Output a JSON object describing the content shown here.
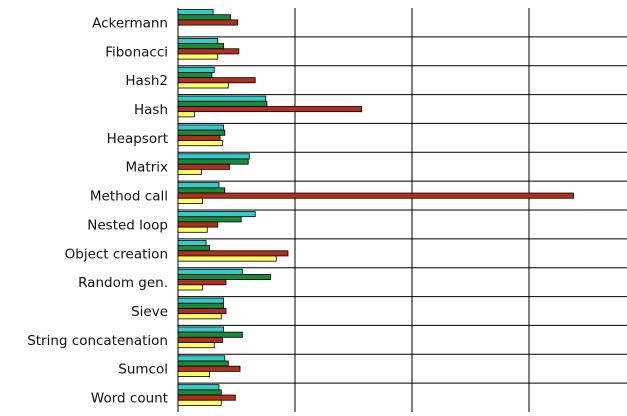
{
  "chart_data": {
    "type": "bar",
    "orientation": "horizontal",
    "categories": [
      "Ackermann",
      "Fibonacci",
      "Hash2",
      "Hash",
      "Heapsort",
      "Matrix",
      "Method call",
      "Nested loop",
      "Object creation",
      "Random gen.",
      "Sieve",
      "String concatenation",
      "Sumcol",
      "Word count"
    ],
    "series": [
      {
        "color": "#33cccc",
        "values": [
          0.3,
          0.34,
          0.31,
          0.75,
          0.39,
          0.61,
          0.35,
          0.66,
          0.24,
          0.55,
          0.39,
          0.39,
          0.4,
          0.35
        ]
      },
      {
        "color": "#1a8a3a",
        "values": [
          0.45,
          0.39,
          0.29,
          0.76,
          0.4,
          0.6,
          0.4,
          0.54,
          0.27,
          0.79,
          0.39,
          0.55,
          0.43,
          0.37
        ]
      },
      {
        "color": "#b03020",
        "values": [
          0.51,
          0.52,
          0.66,
          1.57,
          0.36,
          0.44,
          3.38,
          0.34,
          0.94,
          0.41,
          0.41,
          0.38,
          0.53,
          0.49
        ]
      },
      {
        "color": "#ffff66",
        "values": [
          0.0,
          0.34,
          0.43,
          0.14,
          0.38,
          0.2,
          0.21,
          0.25,
          0.84,
          0.21,
          0.37,
          0.31,
          0.27,
          0.37
        ]
      }
    ],
    "xlim": [
      0,
      3.8
    ],
    "x_grid": [
      0,
      1,
      2,
      3
    ],
    "grid": true,
    "legend": "none"
  }
}
